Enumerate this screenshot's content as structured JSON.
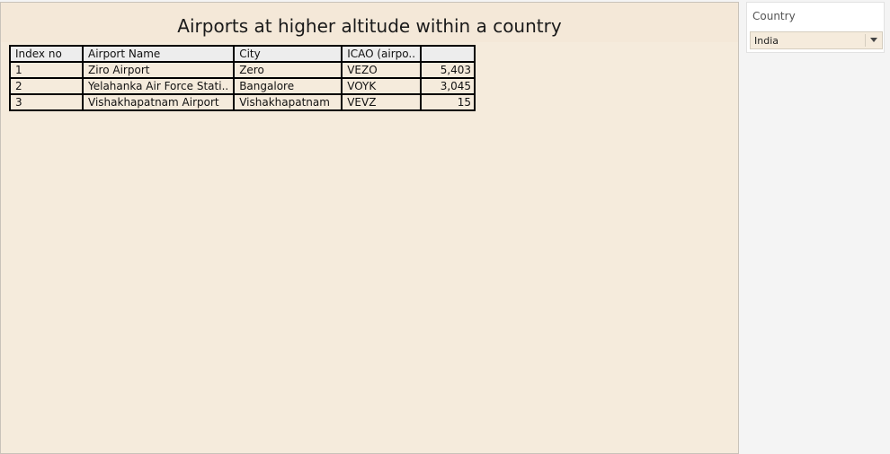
{
  "dashboard": {
    "title": "Airports at higher altitude within a country"
  },
  "table": {
    "headers": [
      "Index no",
      "Airport Name",
      "City",
      "ICAO (airpo..",
      ""
    ],
    "rows": [
      [
        "1",
        "Ziro Airport",
        "Zero",
        "VEZO",
        "5,403"
      ],
      [
        "2",
        "Yelahanka Air Force Stati..",
        "Bangalore",
        "VOYK",
        "3,045"
      ],
      [
        "3",
        "Vishakhapatnam Airport",
        "Vishakhapatnam",
        "VEVZ",
        "15"
      ]
    ]
  },
  "filter": {
    "label": "Country",
    "selected": "India",
    "icon": "chevron-down-icon"
  }
}
